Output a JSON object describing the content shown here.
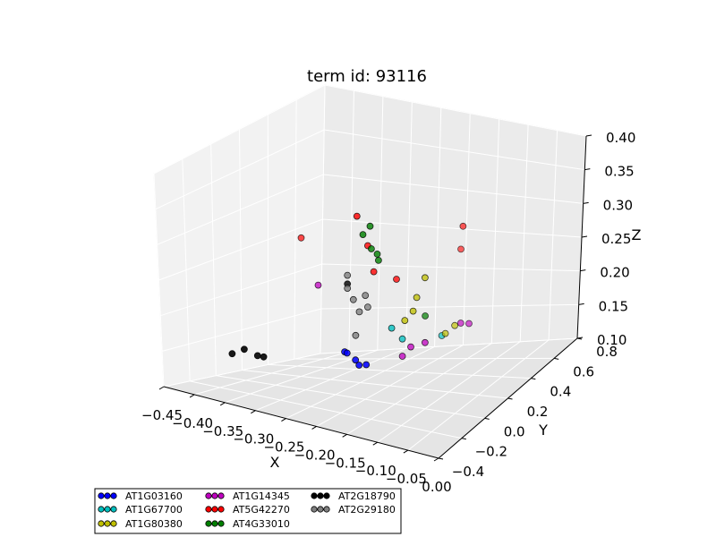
{
  "chart_data": {
    "type": "scatter",
    "title": "term id: 93116",
    "xlabel": "X",
    "ylabel": "Y",
    "zlabel": "Z",
    "xlim": [
      -0.45,
      0.0
    ],
    "ylim": [
      -0.4,
      0.8
    ],
    "zlim": [
      0.1,
      0.4
    ],
    "x_ticks": [
      "−0.45",
      "−0.40",
      "−0.35",
      "−0.30",
      "−0.25",
      "−0.20",
      "−0.15",
      "−0.10",
      "−0.05",
      "0.00"
    ],
    "y_ticks": [
      "−0.4",
      "−0.2",
      "0.0",
      "0.2",
      "0.4",
      "0.6",
      "0.8"
    ],
    "z_ticks": [
      "0.10",
      "0.15",
      "0.20",
      "0.25",
      "0.30",
      "0.35",
      "0.40"
    ],
    "grid": true,
    "legend_position": "bottom-left",
    "series": [
      {
        "name": "AT1G03160",
        "color": "#0000ff",
        "points": [
          [
            -0.21,
            -0.12,
            0.163
          ],
          [
            -0.21,
            -0.1,
            0.16
          ],
          [
            -0.18,
            -0.15,
            0.154
          ],
          [
            -0.17,
            -0.14,
            0.155
          ],
          [
            -0.19,
            -0.13,
            0.157
          ]
        ]
      },
      {
        "name": "AT1G67700",
        "color": "#00bfbf",
        "points": [
          [
            -0.16,
            0.02,
            0.185
          ],
          [
            -0.15,
            0.06,
            0.17
          ],
          [
            -0.12,
            0.24,
            0.16
          ]
        ]
      },
      {
        "name": "AT1G80380",
        "color": "#bfbf00",
        "points": [
          [
            -0.13,
            0.08,
            0.218
          ],
          [
            -0.12,
            0.1,
            0.24
          ],
          [
            -0.13,
            0.05,
            0.205
          ],
          [
            -0.14,
            0.03,
            0.195
          ],
          [
            -0.11,
            0.22,
            0.165
          ],
          [
            -0.1,
            0.25,
            0.172
          ]
        ]
      },
      {
        "name": "AT1G14345",
        "color": "#bf00bf",
        "points": [
          [
            -0.3,
            0.1,
            0.215
          ],
          [
            -0.14,
            0.08,
            0.16
          ],
          [
            -0.12,
            0.1,
            0.165
          ],
          [
            -0.15,
            0.06,
            0.15
          ],
          [
            -0.1,
            0.3,
            0.17
          ],
          [
            -0.09,
            0.32,
            0.168
          ]
        ]
      },
      {
        "name": "AT5G42270",
        "color": "#ff0000",
        "points": [
          [
            -0.21,
            -0.02,
            0.312
          ],
          [
            -0.2,
            0.02,
            0.276
          ],
          [
            -0.19,
            0.02,
            0.247
          ],
          [
            -0.16,
            0.06,
            0.238
          ],
          [
            -0.35,
            0.2,
            0.26
          ],
          [
            -0.1,
            0.32,
            0.28
          ],
          [
            -0.12,
            0.4,
            0.245
          ]
        ]
      },
      {
        "name": "AT4G33010",
        "color": "#007f00",
        "points": [
          [
            -0.2,
            -0.02,
            0.292
          ],
          [
            -0.19,
            -0.01,
            0.302
          ],
          [
            -0.19,
            0.0,
            0.275
          ],
          [
            -0.18,
            0.0,
            0.27
          ],
          [
            -0.18,
            0.01,
            0.262
          ],
          [
            -0.14,
            0.2,
            0.185
          ]
        ]
      },
      {
        "name": "AT2G18790",
        "color": "#000000",
        "points": [
          [
            -0.38,
            -0.2,
            0.142
          ],
          [
            -0.36,
            -0.2,
            0.15
          ],
          [
            -0.34,
            -0.19,
            0.145
          ],
          [
            -0.33,
            -0.19,
            0.145
          ],
          [
            -0.23,
            0.0,
            0.23
          ]
        ]
      },
      {
        "name": "AT2G29180",
        "color": "#808080",
        "points": [
          [
            -0.23,
            0.0,
            0.24
          ],
          [
            -0.23,
            0.0,
            0.225
          ],
          [
            -0.22,
            0.0,
            0.213
          ],
          [
            -0.21,
            0.0,
            0.2
          ],
          [
            -0.2,
            0.0,
            0.22
          ],
          [
            -0.2,
            0.02,
            0.205
          ],
          [
            -0.21,
            -0.03,
            0.175
          ]
        ]
      }
    ]
  }
}
